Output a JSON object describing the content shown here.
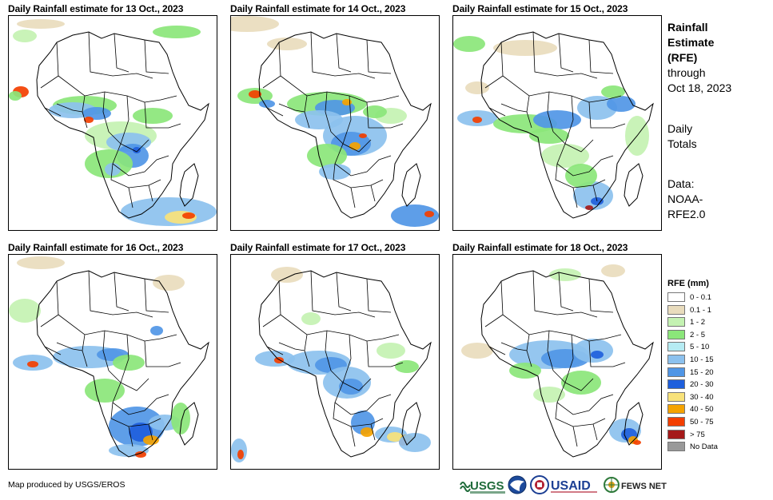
{
  "panels": [
    {
      "title": "Daily Rainfall estimate for 13 Oct., 2023"
    },
    {
      "title": "Daily Rainfall estimate for 14 Oct., 2023"
    },
    {
      "title": "Daily Rainfall estimate for 15 Oct., 2023"
    },
    {
      "title": "Daily Rainfall estimate for 16 Oct., 2023"
    },
    {
      "title": "Daily Rainfall estimate for 17 Oct., 2023"
    },
    {
      "title": "Daily Rainfall estimate for 18 Oct., 2023"
    }
  ],
  "side": {
    "title_line1": "Rainfall",
    "title_line2": "Estimate",
    "title_line3": "(RFE)",
    "through_line1": "through",
    "through_line2": "Oct 18, 2023",
    "totals_line1": "Daily",
    "totals_line2": "Totals",
    "data_line1": "Data:",
    "data_line2": "NOAA-",
    "data_line3": "RFE2.0"
  },
  "legend": {
    "title": "RFE (mm)",
    "items": [
      {
        "label": "0 - 0.1",
        "color": "#ffffff"
      },
      {
        "label": "0.1 - 1",
        "color": "#e9dcbd"
      },
      {
        "label": "1 - 2",
        "color": "#c4f2b2"
      },
      {
        "label": "2 - 5",
        "color": "#8be67a"
      },
      {
        "label": "5 - 10",
        "color": "#b6ecf3"
      },
      {
        "label": "10 - 15",
        "color": "#8cc1ee"
      },
      {
        "label": "15 - 20",
        "color": "#5096e6"
      },
      {
        "label": "20 - 30",
        "color": "#1f5fdc"
      },
      {
        "label": "30 - 40",
        "color": "#f8e27a"
      },
      {
        "label": "40 - 50",
        "color": "#f5a300"
      },
      {
        "label": "50 - 75",
        "color": "#f33f00"
      },
      {
        "label": "> 75",
        "color": "#a51a1a"
      },
      {
        "label": "No Data",
        "color": "#999999"
      }
    ]
  },
  "credit": "Map produced by USGS/EROS",
  "logos": {
    "usgs": "USGS",
    "usaid": "USAID",
    "fews": "FEWS NET"
  }
}
